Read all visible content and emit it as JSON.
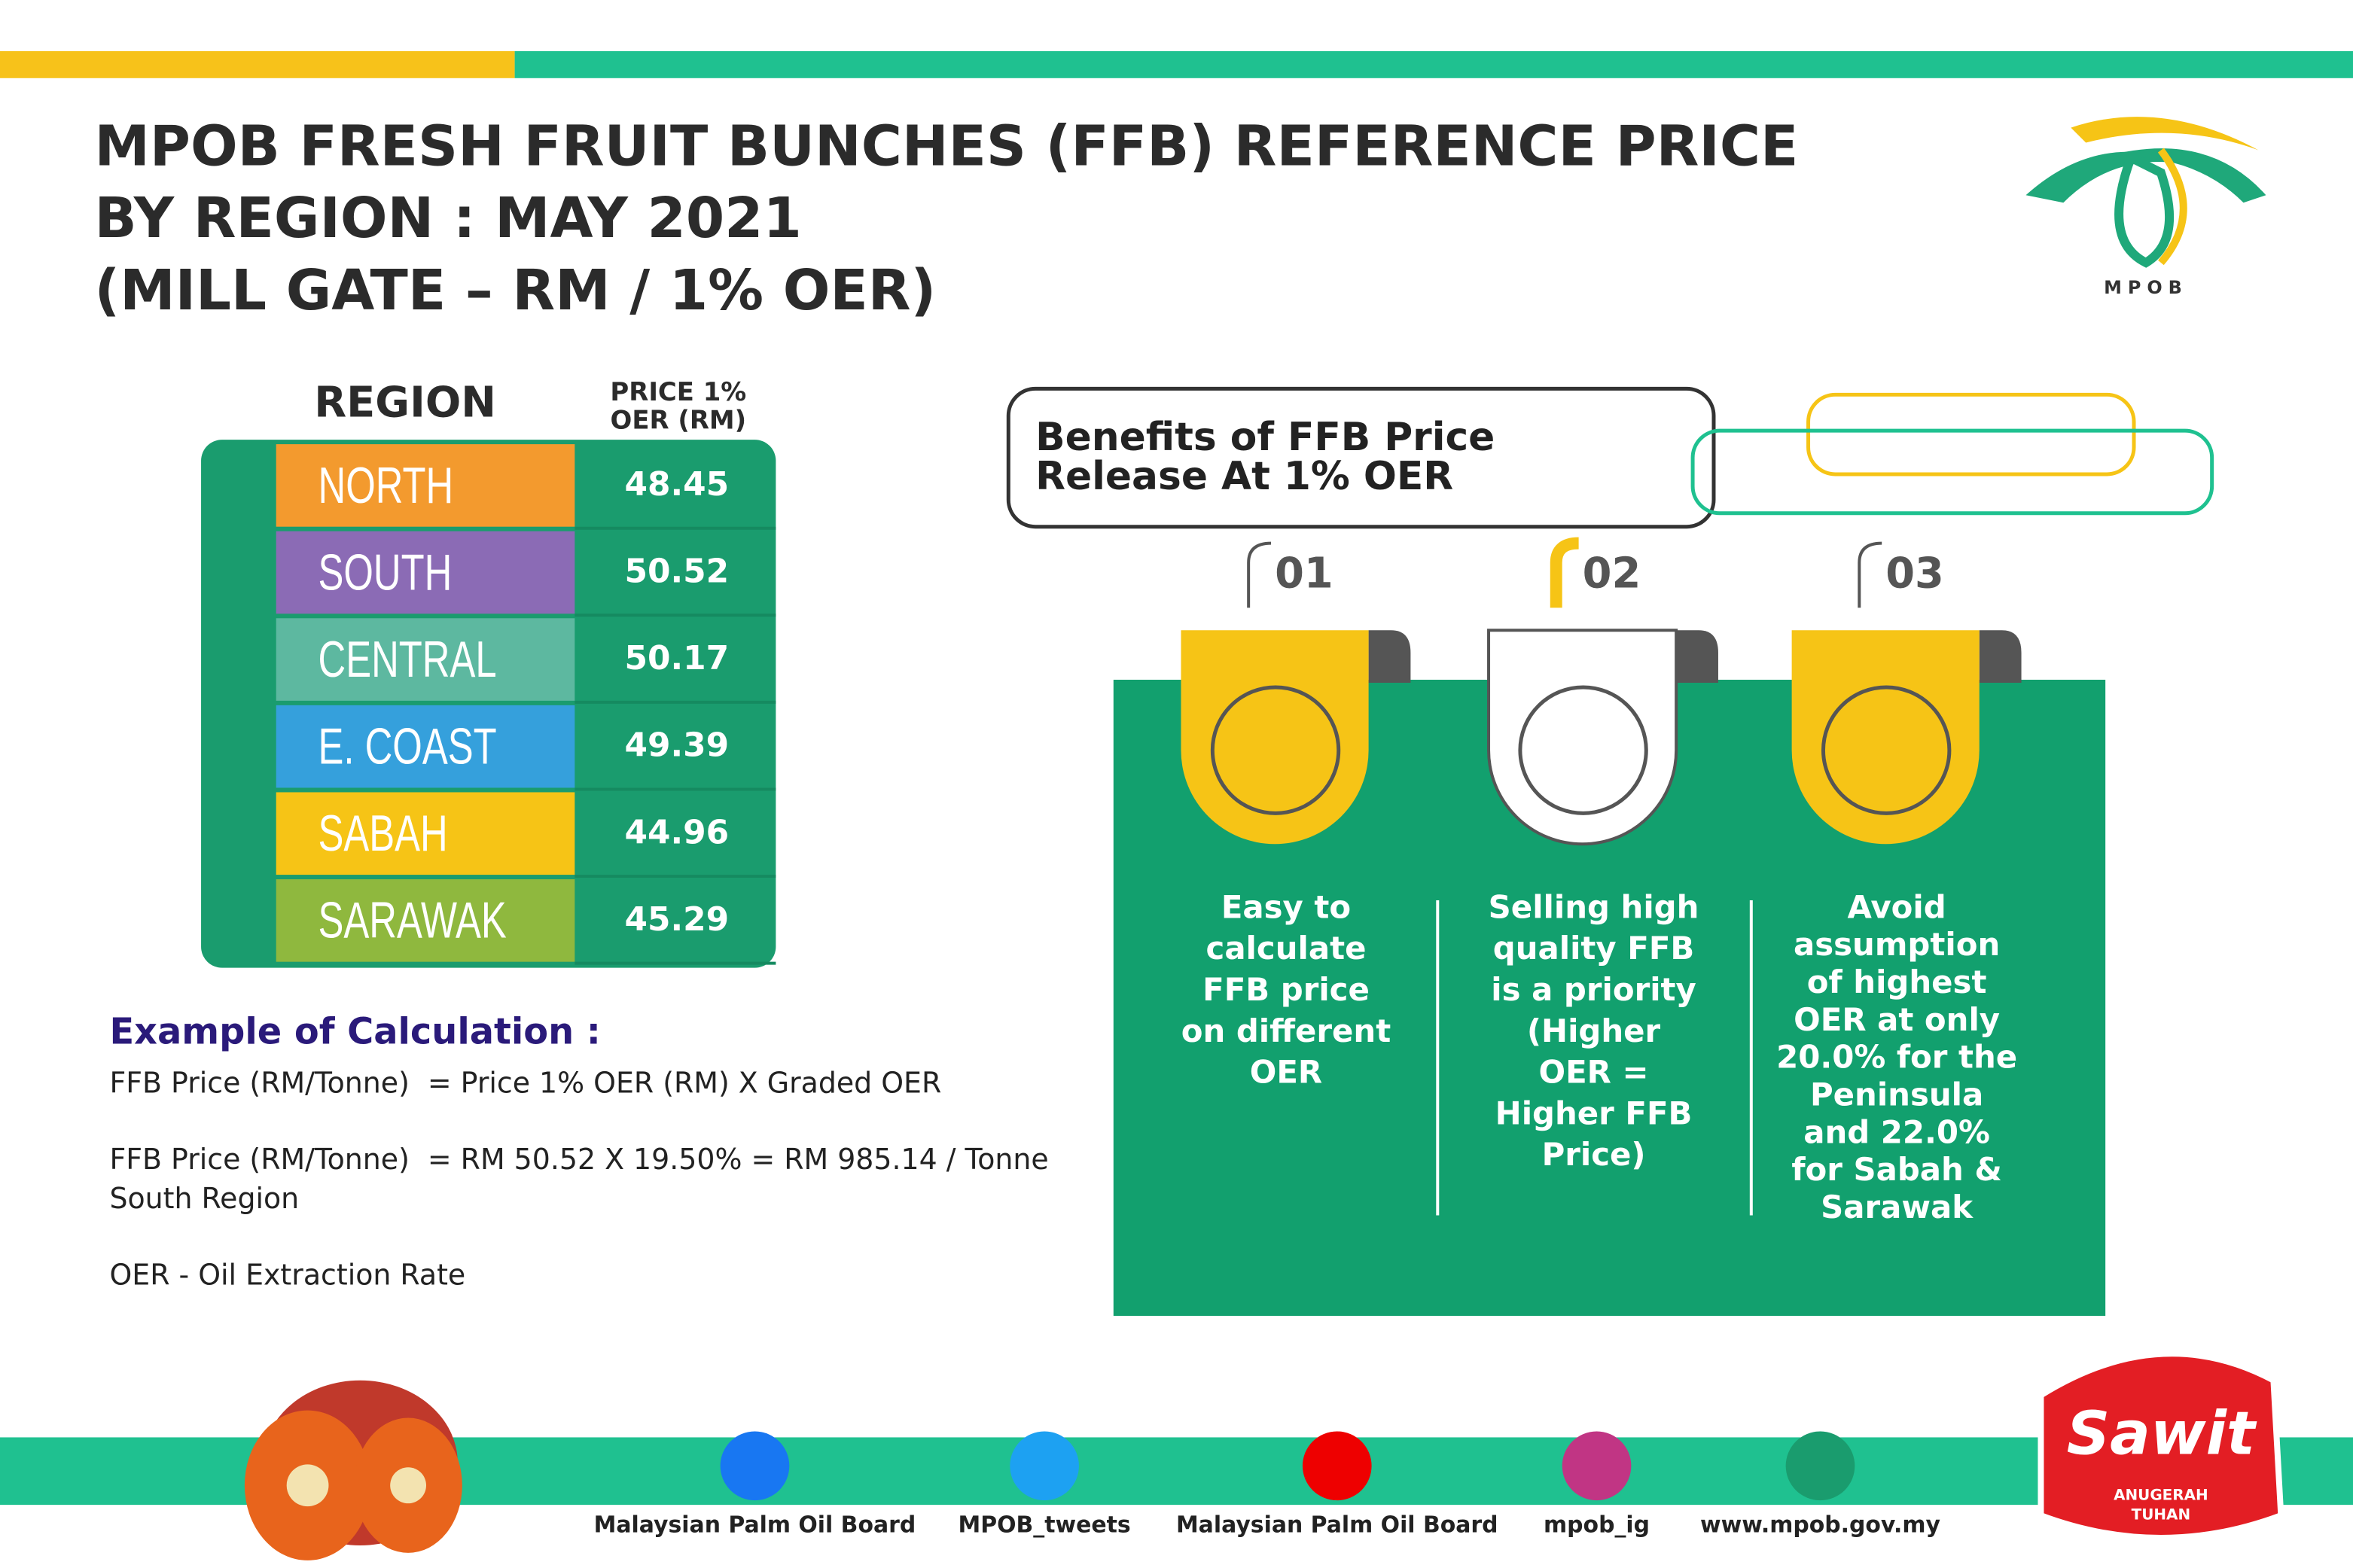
{
  "header": {
    "title_lines": [
      "MPOB FRESH FRUIT BUNCHES (FFB) REFERENCE PRICE",
      "BY REGION : MAY 2021",
      "(MILL GATE – RM / 1% OER)"
    ],
    "logo_text": "MPOB"
  },
  "table": {
    "region_header": "REGION",
    "price_header_lines": [
      "PRICE 1%",
      "OER (RM)"
    ],
    "rows": [
      [
        "NORTH",
        "48.45"
      ],
      [
        "SOUTH",
        "50.52"
      ],
      [
        "CENTRAL",
        "50.17"
      ],
      [
        "E. COAST",
        "49.39"
      ],
      [
        "SABAH",
        "44.96"
      ],
      [
        "SARAWAK",
        "45.29"
      ]
    ]
  },
  "calculation": {
    "title": "Example of Calculation :",
    "lines": [
      "FFB Price (RM/Tonne)  = Price 1% OER (RM) X Graded OER",
      "FFB Price (RM/Tonne)  = RM 50.52 X 19.50% = RM 985.14 / Tonne",
      "South Region",
      "OER - Oil Extraction Rate"
    ]
  },
  "benefits": {
    "title_lines": [
      "Benefits of FFB Price",
      "Release At 1% OER"
    ],
    "items": [
      {
        "number": "01",
        "lines": [
          "Easy to",
          "calculate",
          "FFB price",
          "on different",
          "OER"
        ]
      },
      {
        "number": "02",
        "lines": [
          "Selling high",
          "quality FFB",
          "is a priority",
          "(Higher",
          "OER =",
          "Higher FFB",
          "Price)"
        ]
      },
      {
        "number": "03",
        "lines": [
          "Avoid",
          "assumption",
          "of highest",
          "OER at only",
          "20.0% for the",
          "Peninsula",
          "and 22.0%",
          "for Sabah &",
          "Sarawak"
        ]
      }
    ]
  },
  "footer": {
    "links": [
      "Malaysian Palm Oil Board",
      "MPOB_tweets",
      "Malaysian Palm Oil Board",
      "mpob_ig",
      "www.mpob.gov.my"
    ],
    "badge_lines": [
      "Sawit",
      "ANUGERAH",
      "TUHAN"
    ]
  }
}
